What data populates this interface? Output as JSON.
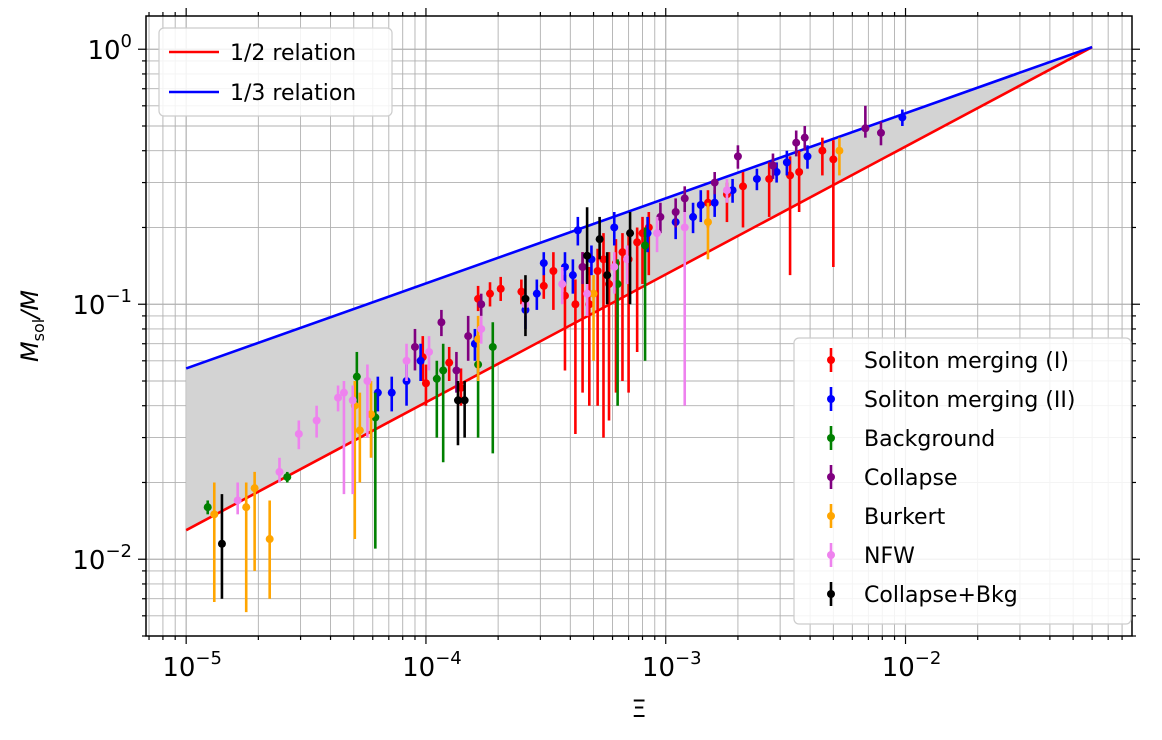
{
  "chart_data": {
    "type": "scatter",
    "xscale": "log",
    "yscale": "log",
    "xlim": [
      6.8e-06,
      0.088
    ],
    "ylim": [
      0.005,
      1.35
    ],
    "xlabel": "Ξ",
    "ylabel_main": "M",
    "ylabel_sub": "sol",
    "ylabel_tail": "/M",
    "x_ticks": [
      {
        "value": 1e-05,
        "base": "10",
        "exp": "−5"
      },
      {
        "value": 0.0001,
        "base": "10",
        "exp": "−4"
      },
      {
        "value": 0.001,
        "base": "10",
        "exp": "−3"
      },
      {
        "value": 0.01,
        "base": "10",
        "exp": "−2"
      }
    ],
    "y_ticks": [
      {
        "value": 0.01,
        "base": "10",
        "exp": "−2"
      },
      {
        "value": 0.1,
        "base": "10",
        "exp": "−1"
      },
      {
        "value": 1.0,
        "base": "10",
        "exp": "0"
      }
    ],
    "grid": true,
    "shaded_band": {
      "color": "#d3d3d3",
      "between": [
        "1/3 relation",
        "1/2 relation"
      ]
    },
    "lines": [
      {
        "name": "1/2 relation",
        "color": "#ff0000",
        "x": [
          1e-05,
          0.06
        ],
        "y": [
          0.013,
          1.02
        ]
      },
      {
        "name": "1/3 relation",
        "color": "#0000ff",
        "x": [
          1e-05,
          0.06
        ],
        "y": [
          0.056,
          1.02
        ]
      }
    ],
    "legend_lines_placement": "top-left",
    "legend_points_placement": "bottom-right",
    "series": [
      {
        "name": "Soliton merging (I)",
        "color": "#ff0000",
        "points": [
          [
            9.7e-05,
            0.062,
            0.05,
            0.075
          ],
          [
            0.0001,
            0.049,
            0.04,
            0.058
          ],
          [
            0.000125,
            0.059,
            0.05,
            0.068
          ],
          [
            0.00014,
            0.047,
            0.04,
            0.056
          ],
          [
            0.000165,
            0.105,
            0.094,
            0.118
          ],
          [
            0.000185,
            0.11,
            0.098,
            0.122
          ],
          [
            0.000205,
            0.115,
            0.103,
            0.128
          ],
          [
            0.00025,
            0.112,
            0.1,
            0.125
          ],
          [
            0.00031,
            0.118,
            0.105,
            0.132
          ],
          [
            0.00034,
            0.135,
            0.095,
            0.16
          ],
          [
            0.00038,
            0.108,
            0.055,
            0.13
          ],
          [
            0.00042,
            0.1,
            0.031,
            0.125
          ],
          [
            0.00045,
            0.14,
            0.045,
            0.16
          ],
          [
            0.00048,
            0.1,
            0.04,
            0.14
          ],
          [
            0.00052,
            0.135,
            0.04,
            0.165
          ],
          [
            0.00055,
            0.15,
            0.03,
            0.19
          ],
          [
            0.00058,
            0.12,
            0.035,
            0.16
          ],
          [
            0.00062,
            0.145,
            0.045,
            0.18
          ],
          [
            0.00066,
            0.16,
            0.05,
            0.19
          ],
          [
            0.0007,
            0.15,
            0.045,
            0.19
          ],
          [
            0.00076,
            0.175,
            0.065,
            0.2
          ],
          [
            0.0008,
            0.19,
            0.12,
            0.22
          ],
          [
            0.00085,
            0.2,
            0.13,
            0.23
          ],
          [
            0.0015,
            0.25,
            0.2,
            0.28
          ],
          [
            0.0018,
            0.27,
            0.21,
            0.3
          ],
          [
            0.0021,
            0.29,
            0.2,
            0.33
          ],
          [
            0.0027,
            0.31,
            0.22,
            0.36
          ],
          [
            0.0033,
            0.32,
            0.13,
            0.38
          ],
          [
            0.0036,
            0.33,
            0.23,
            0.4
          ],
          [
            0.0045,
            0.4,
            0.32,
            0.45
          ],
          [
            0.005,
            0.37,
            0.14,
            0.44
          ]
        ]
      },
      {
        "name": "Soliton merging (II)",
        "color": "#0000ff",
        "points": [
          [
            6.3e-05,
            0.045,
            0.038,
            0.052
          ],
          [
            7.2e-05,
            0.045,
            0.038,
            0.052
          ],
          [
            8.3e-05,
            0.05,
            0.04,
            0.06
          ],
          [
            9.5e-05,
            0.06,
            0.05,
            0.07
          ],
          [
            0.00016,
            0.07,
            0.06,
            0.08
          ],
          [
            0.00026,
            0.095,
            0.08,
            0.11
          ],
          [
            0.00029,
            0.11,
            0.095,
            0.125
          ],
          [
            0.00031,
            0.145,
            0.13,
            0.16
          ],
          [
            0.00038,
            0.14,
            0.12,
            0.16
          ],
          [
            0.00041,
            0.13,
            0.11,
            0.15
          ],
          [
            0.00043,
            0.195,
            0.17,
            0.22
          ],
          [
            0.00049,
            0.15,
            0.13,
            0.17
          ],
          [
            0.00061,
            0.2,
            0.17,
            0.23
          ],
          [
            0.00084,
            0.19,
            0.16,
            0.22
          ],
          [
            0.0011,
            0.21,
            0.18,
            0.24
          ],
          [
            0.0013,
            0.22,
            0.19,
            0.25
          ],
          [
            0.0014,
            0.245,
            0.21,
            0.28
          ],
          [
            0.0016,
            0.25,
            0.22,
            0.28
          ],
          [
            0.0019,
            0.28,
            0.25,
            0.31
          ],
          [
            0.0024,
            0.31,
            0.28,
            0.34
          ],
          [
            0.0029,
            0.33,
            0.3,
            0.36
          ],
          [
            0.0032,
            0.36,
            0.32,
            0.4
          ],
          [
            0.0039,
            0.38,
            0.34,
            0.42
          ],
          [
            0.0097,
            0.54,
            0.5,
            0.58
          ]
        ]
      },
      {
        "name": "Background",
        "color": "#008000",
        "points": [
          [
            1.23e-05,
            0.016,
            0.015,
            0.017
          ],
          [
            2.64e-05,
            0.021,
            0.02,
            0.022
          ],
          [
            5.15e-05,
            0.052,
            0.04,
            0.065
          ],
          [
            6.15e-05,
            0.036,
            0.011,
            0.045
          ],
          [
            0.000111,
            0.051,
            0.03,
            0.06
          ],
          [
            0.000118,
            0.055,
            0.024,
            0.07
          ],
          [
            0.000165,
            0.058,
            0.03,
            0.07
          ],
          [
            0.00019,
            0.068,
            0.026,
            0.085
          ],
          [
            0.00063,
            0.12,
            0.04,
            0.15
          ],
          [
            0.00082,
            0.17,
            0.06,
            0.2
          ]
        ]
      },
      {
        "name": "Collapse",
        "color": "#800080",
        "points": [
          [
            9e-05,
            0.068,
            0.055,
            0.08
          ],
          [
            0.000116,
            0.085,
            0.075,
            0.095
          ],
          [
            0.000134,
            0.055,
            0.045,
            0.065
          ],
          [
            0.00015,
            0.075,
            0.06,
            0.09
          ],
          [
            0.00017,
            0.1,
            0.09,
            0.11
          ],
          [
            0.00045,
            0.14,
            0.12,
            0.16
          ],
          [
            0.00095,
            0.22,
            0.19,
            0.25
          ],
          [
            0.0011,
            0.23,
            0.2,
            0.26
          ],
          [
            0.0012,
            0.26,
            0.23,
            0.29
          ],
          [
            0.0016,
            0.3,
            0.27,
            0.33
          ],
          [
            0.002,
            0.38,
            0.34,
            0.42
          ],
          [
            0.0028,
            0.35,
            0.31,
            0.39
          ],
          [
            0.0035,
            0.43,
            0.38,
            0.48
          ],
          [
            0.0038,
            0.45,
            0.4,
            0.5
          ],
          [
            0.0068,
            0.49,
            0.45,
            0.6
          ],
          [
            0.0079,
            0.47,
            0.42,
            0.52
          ]
        ]
      },
      {
        "name": "Burkert",
        "color": "#ffa500",
        "points": [
          [
            1.31e-05,
            0.015,
            0.0068,
            0.02
          ],
          [
            1.78e-05,
            0.016,
            0.0062,
            0.02
          ],
          [
            1.93e-05,
            0.019,
            0.009,
            0.022
          ],
          [
            2.23e-05,
            0.012,
            0.007,
            0.017
          ],
          [
            5.05e-05,
            0.04,
            0.012,
            0.05
          ],
          [
            5.3e-05,
            0.032,
            0.02,
            0.045
          ],
          [
            5.9e-05,
            0.037,
            0.025,
            0.05
          ],
          [
            0.000165,
            0.073,
            0.05,
            0.09
          ],
          [
            0.0005,
            0.11,
            0.06,
            0.13
          ],
          [
            0.0015,
            0.21,
            0.15,
            0.25
          ],
          [
            0.0053,
            0.4,
            0.32,
            0.45
          ]
        ]
      },
      {
        "name": "NFW",
        "color": "#ee82ee",
        "points": [
          [
            1.64e-05,
            0.017,
            0.015,
            0.02
          ],
          [
            2.45e-05,
            0.022,
            0.02,
            0.025
          ],
          [
            2.95e-05,
            0.031,
            0.027,
            0.035
          ],
          [
            3.5e-05,
            0.035,
            0.03,
            0.04
          ],
          [
            4.3e-05,
            0.043,
            0.038,
            0.048
          ],
          [
            4.55e-05,
            0.045,
            0.018,
            0.05
          ],
          [
            4.95e-05,
            0.042,
            0.018,
            0.048
          ],
          [
            5.7e-05,
            0.05,
            0.03,
            0.058
          ],
          [
            8.3e-05,
            0.06,
            0.05,
            0.07
          ],
          [
            0.000103,
            0.065,
            0.055,
            0.075
          ],
          [
            0.00017,
            0.08,
            0.07,
            0.09
          ],
          [
            0.00026,
            0.1,
            0.09,
            0.11
          ],
          [
            0.00037,
            0.12,
            0.1,
            0.14
          ],
          [
            0.00047,
            0.11,
            0.09,
            0.13
          ],
          [
            0.00061,
            0.14,
            0.11,
            0.16
          ],
          [
            0.00069,
            0.15,
            0.12,
            0.17
          ],
          [
            0.00092,
            0.19,
            0.16,
            0.22
          ],
          [
            0.0012,
            0.2,
            0.04,
            0.23
          ],
          [
            0.0018,
            0.28,
            0.25,
            0.31
          ]
        ]
      },
      {
        "name": "Collapse+Bkg",
        "color": "#000000",
        "points": [
          [
            1.41e-05,
            0.0115,
            0.007,
            0.018
          ],
          [
            0.000136,
            0.042,
            0.028,
            0.05
          ],
          [
            0.000145,
            0.042,
            0.03,
            0.05
          ],
          [
            0.00026,
            0.105,
            0.075,
            0.13
          ],
          [
            0.00047,
            0.155,
            0.12,
            0.24
          ],
          [
            0.00053,
            0.18,
            0.15,
            0.22
          ],
          [
            0.00057,
            0.13,
            0.1,
            0.16
          ],
          [
            0.00071,
            0.19,
            0.1,
            0.23
          ]
        ]
      }
    ]
  },
  "colors": {
    "band": "#d3d3d3",
    "grid": "#b0b0b0"
  }
}
